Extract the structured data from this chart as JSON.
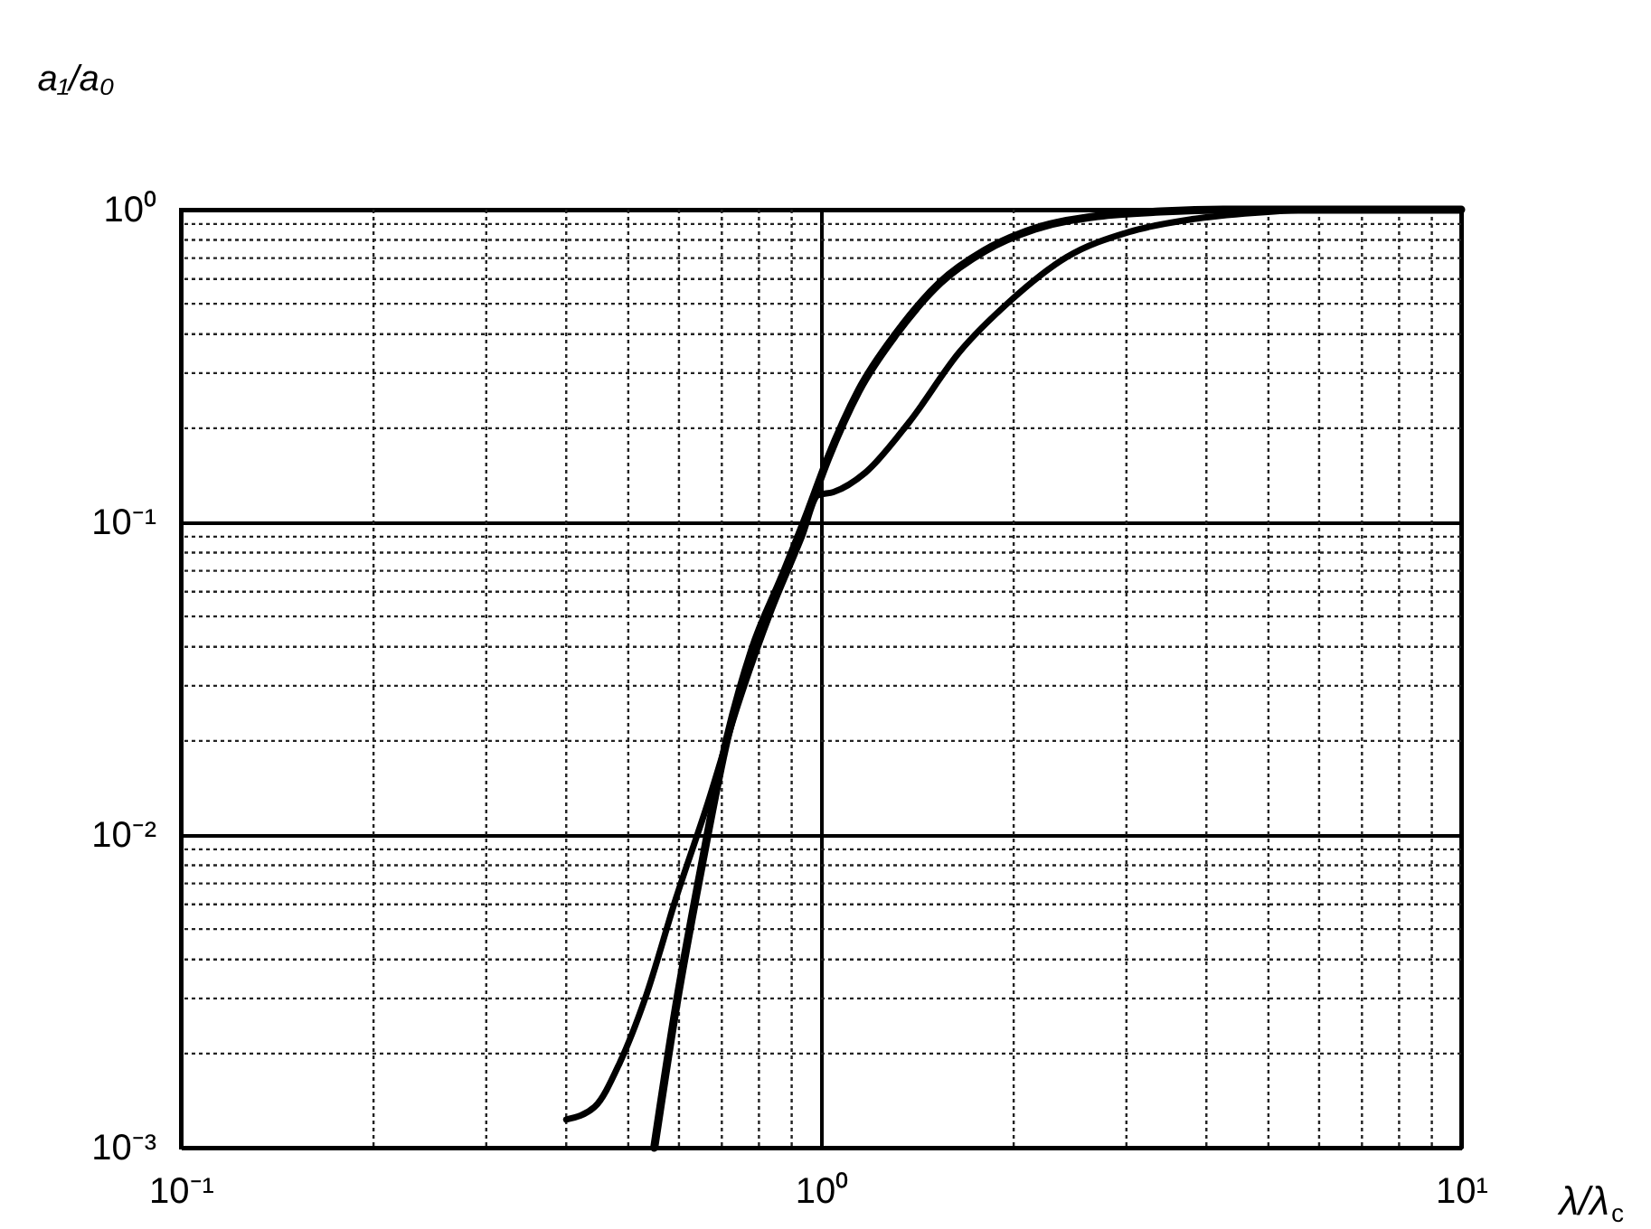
{
  "chart_data": {
    "type": "line",
    "xlabel": "λ/λ$_{c}$",
    "ylabel": "a₁/a₀",
    "log": "xy",
    "grid": true,
    "legend": false,
    "xlim": [
      0.1,
      10
    ],
    "ylim": [
      0.001,
      1
    ],
    "xticks": [
      {
        "value": 0.1,
        "label": "10⁻¹"
      },
      {
        "value": 1,
        "label": "10⁰"
      },
      {
        "value": 10,
        "label": "10¹"
      }
    ],
    "yticks": [
      {
        "value": 0.001,
        "label": "10⁻³"
      },
      {
        "value": 0.01,
        "label": "10⁻²"
      },
      {
        "value": 0.1,
        "label": "10⁻¹"
      },
      {
        "value": 1,
        "label": "10⁰"
      }
    ],
    "series": [
      {
        "color": "#000000",
        "x": [
          0.549,
          0.594,
          0.651,
          0.713,
          0.78,
          0.873,
          0.956,
          1.023,
          1.146,
          1.312,
          1.537,
          1.8,
          2.16,
          2.71,
          3.39,
          4.25,
          10
        ],
        "values": [
          0.001,
          0.00284,
          0.00796,
          0.0202,
          0.0389,
          0.0682,
          0.109,
          0.158,
          0.264,
          0.402,
          0.585,
          0.738,
          0.869,
          0.954,
          0.986,
          1.0,
          1.0
        ]
      },
      {
        "color": "#000000",
        "x": [
          0.4,
          0.443,
          0.485,
          0.531,
          0.594,
          0.666,
          0.745,
          0.834,
          0.934,
          0.989,
          1.046,
          1.172,
          1.373,
          1.645,
          1.97,
          2.42,
          3.03,
          3.8,
          4.76,
          5.96,
          10
        ],
        "values": [
          0.00123,
          0.00135,
          0.00187,
          0.00299,
          0.0063,
          0.0127,
          0.0268,
          0.0515,
          0.0902,
          0.122,
          0.125,
          0.144,
          0.209,
          0.35,
          0.508,
          0.705,
          0.849,
          0.932,
          0.977,
          1.0,
          1.0
        ]
      }
    ]
  }
}
